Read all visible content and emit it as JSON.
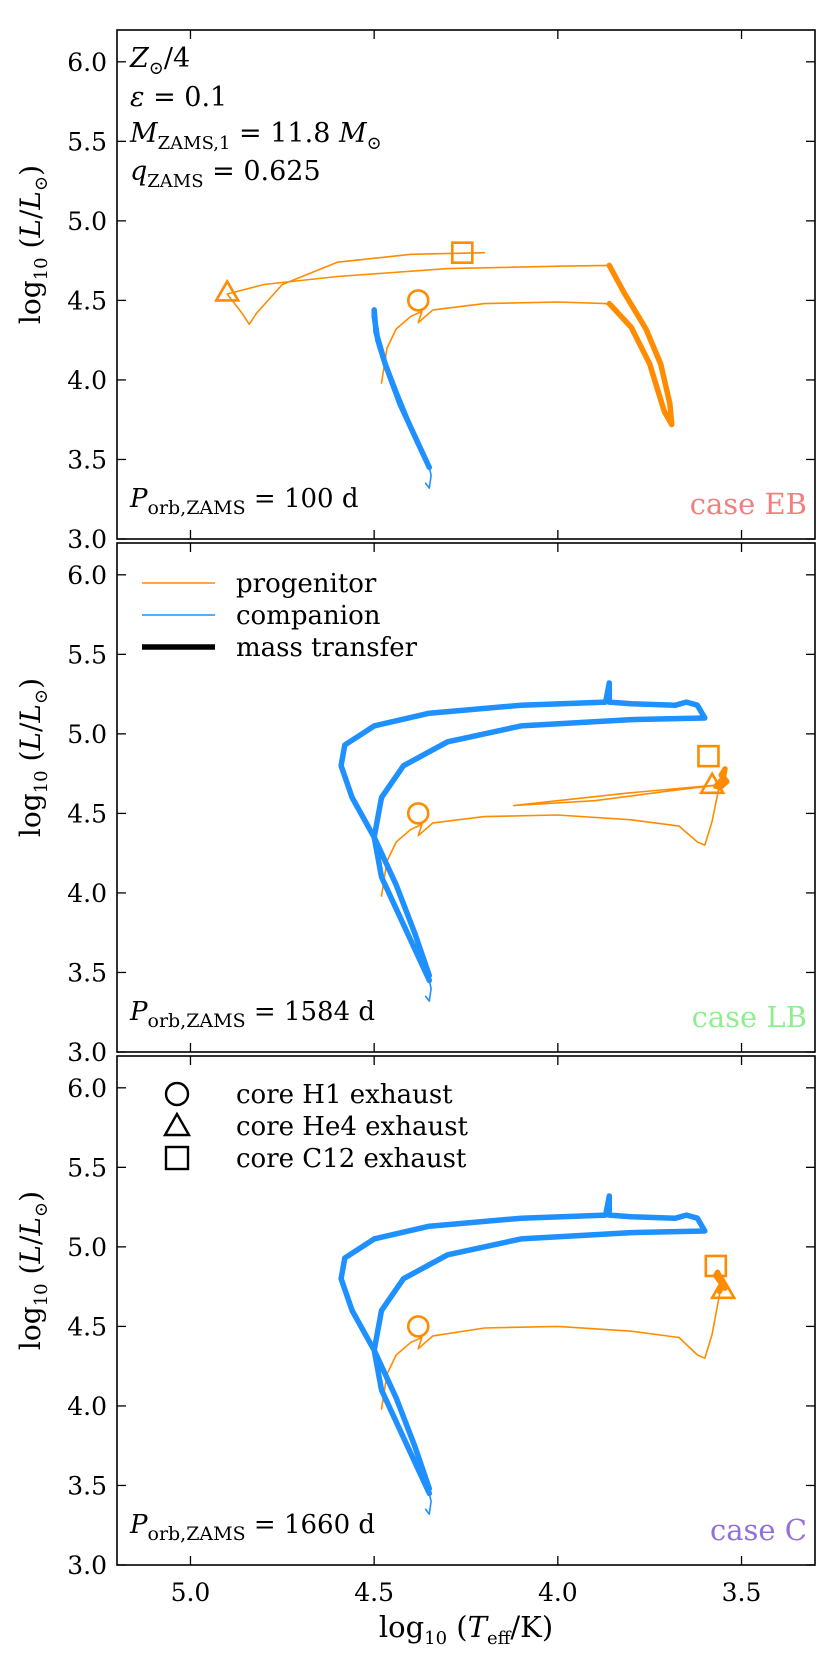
{
  "colors": {
    "progenitor": "#ff8c00",
    "companion": "#1e90ff",
    "case_EB": "#f08080",
    "case_LB": "#90ee90",
    "case_C": "#9370db"
  },
  "chart_data": {
    "type": "line",
    "title": "",
    "xlabel": "log10 (Teff/K)",
    "ylabel": "log10 (L/L⊙)",
    "xlim": [
      5.2,
      3.3
    ],
    "ylim": [
      3.0,
      6.2
    ],
    "x_axis_inverted": true,
    "x_ticks": [
      5.0,
      4.5,
      4.0,
      3.5
    ],
    "x_tick_labels": [
      "5.0",
      "4.5",
      "4.0",
      "3.5"
    ],
    "y_ticks": [
      3.0,
      3.5,
      4.0,
      4.5,
      5.0,
      5.5,
      6.0
    ],
    "y_tick_labels": [
      "3.0",
      "3.5",
      "4.0",
      "4.5",
      "5.0",
      "5.5",
      "6.0"
    ],
    "parameters": [
      "Z⊙/4",
      "ε = 0.1",
      "MZAMS,1 = 11.8 M⊙",
      "qZAMS = 0.625"
    ],
    "legend_lines": [
      "progenitor",
      "companion",
      "mass transfer"
    ],
    "legend_markers": [
      {
        "marker": "circle",
        "label": "core H1 exhaust"
      },
      {
        "marker": "triangle",
        "label": "core He4 exhaust"
      },
      {
        "marker": "square",
        "label": "core C12 exhaust"
      }
    ],
    "panels": [
      {
        "case_label": "case EB",
        "period_label": "Porb,ZAMS = 100 d",
        "series": [
          {
            "name": "progenitor",
            "role": "progenitor",
            "mass_transfer": false,
            "points": [
              [
                4.48,
                3.98
              ],
              [
                4.465,
                4.2
              ],
              [
                4.44,
                4.32
              ],
              [
                4.4,
                4.4
              ],
              [
                4.37,
                4.43
              ],
              [
                4.38,
                4.36
              ],
              [
                4.34,
                4.44
              ],
              [
                4.2,
                4.48
              ],
              [
                4.0,
                4.49
              ],
              [
                3.87,
                4.48
              ],
              [
                3.85,
                4.46
              ]
            ]
          },
          {
            "name": "progenitor (mass transfer)",
            "role": "progenitor",
            "mass_transfer": true,
            "points": [
              [
                3.86,
                4.48
              ],
              [
                3.8,
                4.33
              ],
              [
                3.75,
                4.1
              ],
              [
                3.71,
                3.8
              ],
              [
                3.69,
                3.72
              ],
              [
                3.695,
                3.85
              ],
              [
                3.72,
                4.1
              ],
              [
                3.76,
                4.32
              ],
              [
                3.82,
                4.55
              ],
              [
                3.86,
                4.72
              ]
            ]
          },
          {
            "name": "progenitor",
            "role": "progenitor",
            "mass_transfer": false,
            "points": [
              [
                3.86,
                4.72
              ],
              [
                4.0,
                4.715
              ],
              [
                4.3,
                4.7
              ],
              [
                4.6,
                4.65
              ],
              [
                4.8,
                4.6
              ],
              [
                4.9,
                4.54
              ],
              [
                4.86,
                4.42
              ],
              [
                4.84,
                4.35
              ],
              [
                4.82,
                4.42
              ],
              [
                4.75,
                4.6
              ],
              [
                4.6,
                4.74
              ],
              [
                4.4,
                4.79
              ],
              [
                4.2,
                4.8
              ]
            ]
          },
          {
            "name": "companion",
            "role": "companion",
            "mass_transfer": false,
            "points": [
              [
                4.35,
                3.45
              ],
              [
                4.345,
                3.4
              ],
              [
                4.35,
                3.32
              ],
              [
                4.36,
                3.35
              ]
            ]
          },
          {
            "name": "companion (mass transfer)",
            "role": "companion",
            "mass_transfer": true,
            "points": [
              [
                4.35,
                3.45
              ],
              [
                4.38,
                3.6
              ],
              [
                4.41,
                3.75
              ],
              [
                4.44,
                3.92
              ],
              [
                4.47,
                4.1
              ],
              [
                4.49,
                4.25
              ],
              [
                4.5,
                4.4
              ],
              [
                4.5,
                4.44
              ],
              [
                4.495,
                4.3
              ],
              [
                4.47,
                4.1
              ],
              [
                4.43,
                3.85
              ],
              [
                4.39,
                3.65
              ],
              [
                4.36,
                3.5
              ]
            ]
          }
        ],
        "markers": [
          {
            "marker": "circle",
            "role": "progenitor",
            "x": 4.38,
            "y": 4.5
          },
          {
            "marker": "triangle",
            "role": "progenitor",
            "x": 4.9,
            "y": 4.55
          },
          {
            "marker": "square",
            "role": "progenitor",
            "x": 4.26,
            "y": 4.8
          }
        ]
      },
      {
        "case_label": "case LB",
        "period_label": "Porb,ZAMS = 1584 d",
        "series": [
          {
            "name": "progenitor",
            "role": "progenitor",
            "mass_transfer": false,
            "points": [
              [
                4.48,
                3.98
              ],
              [
                4.465,
                4.2
              ],
              [
                4.44,
                4.32
              ],
              [
                4.4,
                4.4
              ],
              [
                4.37,
                4.43
              ],
              [
                4.38,
                4.36
              ],
              [
                4.34,
                4.44
              ],
              [
                4.2,
                4.48
              ],
              [
                4.0,
                4.49
              ],
              [
                3.8,
                4.46
              ],
              [
                3.67,
                4.42
              ],
              [
                3.62,
                4.32
              ],
              [
                3.6,
                4.3
              ],
              [
                3.58,
                4.45
              ],
              [
                3.56,
                4.68
              ],
              [
                3.8,
                4.63
              ],
              [
                4.0,
                4.58
              ],
              [
                4.12,
                4.55
              ],
              [
                3.9,
                4.58
              ],
              [
                3.7,
                4.64
              ],
              [
                3.56,
                4.68
              ]
            ]
          },
          {
            "name": "progenitor (mass transfer)",
            "role": "progenitor",
            "mass_transfer": true,
            "points": [
              [
                3.57,
                4.67
              ],
              [
                3.55,
                4.72
              ],
              [
                3.545,
                4.78
              ],
              [
                3.555,
                4.74
              ],
              [
                3.54,
                4.7
              ],
              [
                3.56,
                4.66
              ]
            ]
          },
          {
            "name": "companion",
            "role": "companion",
            "mass_transfer": false,
            "points": [
              [
                4.35,
                3.45
              ],
              [
                4.345,
                3.4
              ],
              [
                4.35,
                3.32
              ],
              [
                4.36,
                3.35
              ]
            ]
          },
          {
            "name": "companion (mass transfer)",
            "role": "companion",
            "mass_transfer": true,
            "points": [
              [
                4.35,
                3.45
              ],
              [
                4.39,
                3.65
              ],
              [
                4.44,
                3.9
              ],
              [
                4.48,
                4.1
              ],
              [
                4.5,
                4.35
              ],
              [
                4.48,
                4.6
              ],
              [
                4.42,
                4.8
              ],
              [
                4.3,
                4.95
              ],
              [
                4.1,
                5.05
              ],
              [
                3.8,
                5.09
              ],
              [
                3.6,
                5.1
              ],
              [
                3.62,
                5.18
              ],
              [
                3.65,
                5.2
              ],
              [
                3.68,
                5.18
              ],
              [
                3.8,
                5.19
              ],
              [
                3.86,
                5.2
              ],
              [
                3.86,
                5.32
              ],
              [
                3.87,
                5.2
              ],
              [
                4.1,
                5.18
              ],
              [
                4.35,
                5.13
              ],
              [
                4.5,
                5.05
              ],
              [
                4.58,
                4.93
              ],
              [
                4.59,
                4.8
              ],
              [
                4.56,
                4.6
              ],
              [
                4.5,
                4.35
              ],
              [
                4.44,
                4.05
              ],
              [
                4.39,
                3.75
              ],
              [
                4.35,
                3.48
              ]
            ]
          }
        ],
        "markers": [
          {
            "marker": "circle",
            "role": "progenitor",
            "x": 4.38,
            "y": 4.5
          },
          {
            "marker": "triangle",
            "role": "progenitor",
            "x": 3.58,
            "y": 4.68
          },
          {
            "marker": "square",
            "role": "progenitor",
            "x": 3.59,
            "y": 4.86
          }
        ]
      },
      {
        "case_label": "case C",
        "period_label": "Porb,ZAMS = 1660 d",
        "series": [
          {
            "name": "progenitor",
            "role": "progenitor",
            "mass_transfer": false,
            "points": [
              [
                4.48,
                3.98
              ],
              [
                4.465,
                4.2
              ],
              [
                4.44,
                4.32
              ],
              [
                4.4,
                4.4
              ],
              [
                4.37,
                4.43
              ],
              [
                4.38,
                4.36
              ],
              [
                4.34,
                4.44
              ],
              [
                4.2,
                4.49
              ],
              [
                4.0,
                4.5
              ],
              [
                3.8,
                4.47
              ],
              [
                3.67,
                4.43
              ],
              [
                3.62,
                4.32
              ],
              [
                3.6,
                4.3
              ],
              [
                3.58,
                4.45
              ],
              [
                3.56,
                4.7
              ]
            ]
          },
          {
            "name": "progenitor (mass transfer)",
            "role": "progenitor",
            "mass_transfer": true,
            "points": [
              [
                3.56,
                4.72
              ],
              [
                3.55,
                4.76
              ],
              [
                3.565,
                4.84
              ],
              [
                3.57,
                4.82
              ],
              [
                3.545,
                4.74
              ]
            ]
          },
          {
            "name": "companion",
            "role": "companion",
            "mass_transfer": false,
            "points": [
              [
                4.35,
                3.45
              ],
              [
                4.345,
                3.4
              ],
              [
                4.35,
                3.32
              ],
              [
                4.36,
                3.35
              ]
            ]
          },
          {
            "name": "companion (mass transfer)",
            "role": "companion",
            "mass_transfer": true,
            "points": [
              [
                4.35,
                3.45
              ],
              [
                4.39,
                3.65
              ],
              [
                4.44,
                3.9
              ],
              [
                4.48,
                4.1
              ],
              [
                4.5,
                4.35
              ],
              [
                4.48,
                4.6
              ],
              [
                4.42,
                4.8
              ],
              [
                4.3,
                4.95
              ],
              [
                4.1,
                5.05
              ],
              [
                3.8,
                5.09
              ],
              [
                3.6,
                5.1
              ],
              [
                3.62,
                5.18
              ],
              [
                3.65,
                5.2
              ],
              [
                3.68,
                5.18
              ],
              [
                3.8,
                5.19
              ],
              [
                3.86,
                5.2
              ],
              [
                3.86,
                5.32
              ],
              [
                3.87,
                5.2
              ],
              [
                4.1,
                5.18
              ],
              [
                4.35,
                5.13
              ],
              [
                4.5,
                5.05
              ],
              [
                4.58,
                4.93
              ],
              [
                4.59,
                4.8
              ],
              [
                4.56,
                4.6
              ],
              [
                4.5,
                4.35
              ],
              [
                4.44,
                4.05
              ],
              [
                4.39,
                3.75
              ],
              [
                4.35,
                3.48
              ]
            ]
          }
        ],
        "markers": [
          {
            "marker": "circle",
            "role": "progenitor",
            "x": 4.38,
            "y": 4.5
          },
          {
            "marker": "triangle",
            "role": "progenitor",
            "x": 3.55,
            "y": 4.73
          },
          {
            "marker": "square",
            "role": "progenitor",
            "x": 3.57,
            "y": 4.88
          }
        ]
      }
    ]
  }
}
